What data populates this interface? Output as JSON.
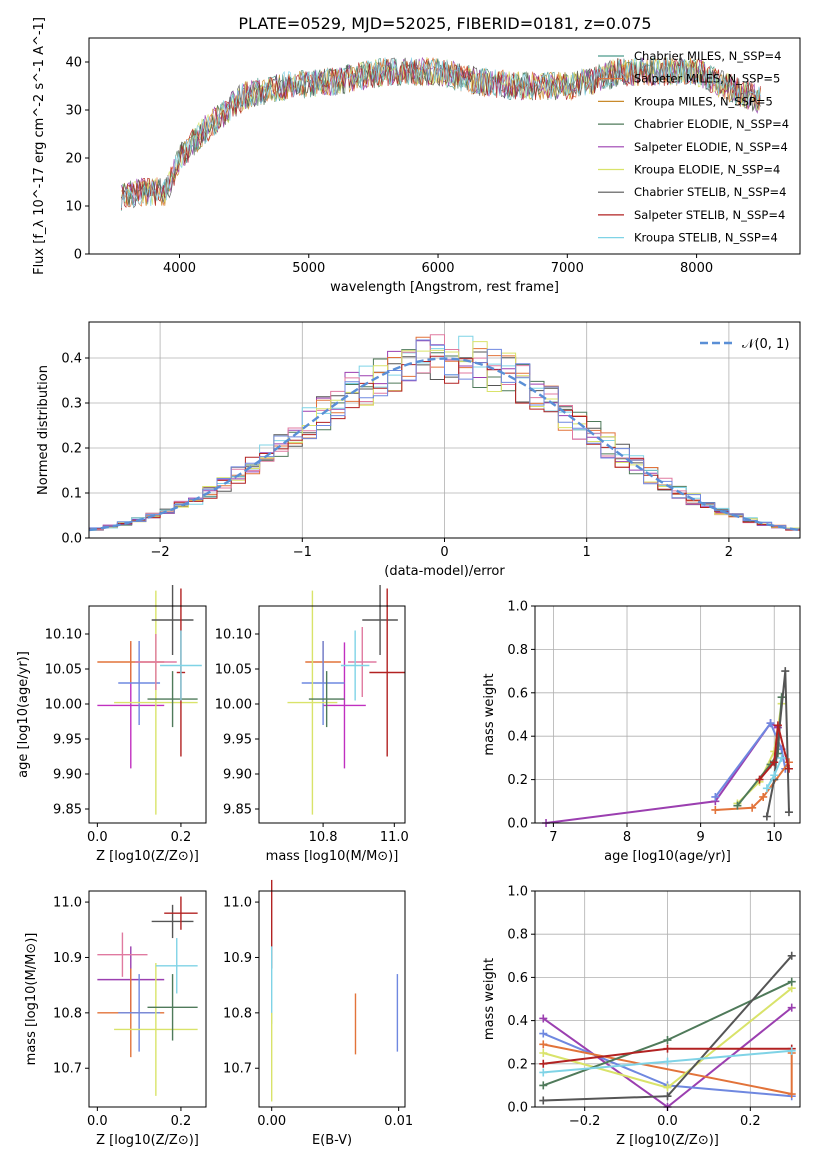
{
  "figure_title": "PLATE=0529, MJD=52025, FIBERID=0181, z=0.075",
  "chart_data": [
    {
      "id": "spectrum",
      "type": "line",
      "xlabel": "wavelength [Angstrom, rest frame]",
      "ylabel": "Flux [f_λ 10^-17 erg cm^-2 s^-1 A^-1]",
      "xlim": [
        3300,
        8800
      ],
      "ylim": [
        0,
        45
      ],
      "xticks": [
        4000,
        5000,
        6000,
        7000,
        8000
      ],
      "yticks": [
        0,
        10,
        20,
        30,
        40
      ],
      "legend_position": "top-right",
      "series": [
        {
          "name": "Chabrier MILES, N_SSP=4",
          "color": "#4c9a8c"
        },
        {
          "name": "Salpeter MILES, N_SSP=5",
          "color": "#e2733a"
        },
        {
          "name": "Kroupa MILES, N_SSP=5",
          "color": "#c98a2b"
        },
        {
          "name": "Chabrier ELODIE, N_SSP=4",
          "color": "#4f7a5a"
        },
        {
          "name": "Salpeter ELODIE, N_SSP=4",
          "color": "#9b3fb0"
        },
        {
          "name": "Kroupa ELODIE, N_SSP=4",
          "color": "#d9e36a"
        },
        {
          "name": "Chabrier STELIB, N_SSP=4",
          "color": "#555555"
        },
        {
          "name": "Salpeter STELIB, N_SSP=4",
          "color": "#b22222"
        },
        {
          "name": "Kroupa STELIB, N_SSP=4",
          "color": "#7fd3e6"
        }
      ],
      "continuum": {
        "x": [
          3550,
          3700,
          3900,
          4000,
          4200,
          4500,
          4800,
          5200,
          5600,
          6000,
          6300,
          6600,
          7000,
          7200,
          7400,
          7600,
          8000,
          8300,
          8500
        ],
        "y": [
          12,
          13,
          13,
          20,
          26,
          33,
          35,
          36,
          38,
          38,
          36,
          35,
          35,
          36,
          38,
          38,
          38,
          34,
          32
        ]
      }
    },
    {
      "id": "residuals",
      "type": "histogram",
      "xlabel": "(data-model)/error",
      "ylabel": "Normed distribution",
      "xlim": [
        -2.5,
        2.5
      ],
      "ylim": [
        0,
        0.48
      ],
      "xticks": [
        -2,
        -1,
        0,
        1,
        2
      ],
      "yticks": [
        0.0,
        0.1,
        0.2,
        0.3,
        0.4
      ],
      "legend_label": "𝒩(0, 1)",
      "legend_position": "top-right",
      "curve_color": "#5a8fd6",
      "grid": true
    },
    {
      "id": "age-vs-Z",
      "type": "errorbar",
      "xlabel": "Z [log10(Z/Z⊙)]",
      "ylabel": "age  [log10(age/yr)]",
      "xlim": [
        -0.02,
        0.26
      ],
      "ylim": [
        9.83,
        10.14
      ],
      "xticks": [
        0.0,
        0.2
      ],
      "yticks": [
        9.85,
        9.9,
        9.95,
        10.0,
        10.05,
        10.1
      ],
      "points": [
        {
          "x": 0.08,
          "y": 9.998,
          "xerr": 0.08,
          "yerr": 0.09,
          "color": "#c030c0"
        },
        {
          "x": 0.08,
          "y": 10.06,
          "xerr": 0.08,
          "yerr": 0.03,
          "color": "#e2733a"
        },
        {
          "x": 0.1,
          "y": 10.03,
          "xerr": 0.05,
          "yerr": 0.06,
          "color": "#6f88e0"
        },
        {
          "x": 0.14,
          "y": 10.002,
          "xerr": 0.1,
          "yerr": 0.16,
          "color": "#d9e36a"
        },
        {
          "x": 0.14,
          "y": 10.06,
          "xerr": 0.05,
          "yerr": 0.04,
          "color": "#e07aa0"
        },
        {
          "x": 0.18,
          "y": 10.007,
          "xerr": 0.06,
          "yerr": 0.04,
          "color": "#4f7a5a"
        },
        {
          "x": 0.18,
          "y": 10.12,
          "xerr": 0.05,
          "yerr": 0.05,
          "color": "#555555"
        },
        {
          "x": 0.2,
          "y": 10.045,
          "xerr": 0.01,
          "yerr": 0.12,
          "color": "#b22222"
        },
        {
          "x": 0.2,
          "y": 10.055,
          "xerr": 0.05,
          "yerr": 0.05,
          "color": "#7fd3e6"
        }
      ]
    },
    {
      "id": "age-vs-mass",
      "type": "errorbar",
      "xlabel": "mass [log10(M/M⊙)]",
      "ylabel": "",
      "xlim": [
        10.62,
        11.03
      ],
      "ylim": [
        9.83,
        10.14
      ],
      "xticks": [
        10.8,
        11.0
      ],
      "yticks": [
        9.85,
        9.9,
        9.95,
        10.0,
        10.05,
        10.1
      ],
      "points": [
        {
          "x": 10.86,
          "y": 9.998,
          "xerr": 0.06,
          "yerr": 0.09,
          "color": "#c030c0"
        },
        {
          "x": 10.8,
          "y": 10.06,
          "xerr": 0.05,
          "yerr": 0.03,
          "color": "#e2733a"
        },
        {
          "x": 10.8,
          "y": 10.03,
          "xerr": 0.06,
          "yerr": 0.06,
          "color": "#6f88e0"
        },
        {
          "x": 10.77,
          "y": 10.002,
          "xerr": 0.07,
          "yerr": 0.16,
          "color": "#d9e36a"
        },
        {
          "x": 10.91,
          "y": 10.06,
          "xerr": 0.04,
          "yerr": 0.05,
          "color": "#e07aa0"
        },
        {
          "x": 10.81,
          "y": 10.007,
          "xerr": 0.05,
          "yerr": 0.04,
          "color": "#4f7a5a"
        },
        {
          "x": 10.96,
          "y": 10.12,
          "xerr": 0.05,
          "yerr": 0.05,
          "color": "#555555"
        },
        {
          "x": 10.98,
          "y": 10.045,
          "xerr": 0.05,
          "yerr": 0.12,
          "color": "#b22222"
        },
        {
          "x": 10.89,
          "y": 10.055,
          "xerr": 0.04,
          "yerr": 0.05,
          "color": "#7fd3e6"
        }
      ]
    },
    {
      "id": "weight-vs-age",
      "type": "line",
      "xlabel": "age  [log10(age/yr)]",
      "ylabel": "mass weight",
      "xlim": [
        6.75,
        10.35
      ],
      "ylim": [
        0,
        1
      ],
      "xticks": [
        7,
        8,
        9,
        10
      ],
      "yticks": [
        0.0,
        0.2,
        0.4,
        0.6,
        0.8,
        1.0
      ],
      "grid": true,
      "series": [
        {
          "color": "#9b3fb0",
          "x": [
            6.9,
            9.2,
            9.95,
            10.05
          ],
          "y": [
            0.0,
            0.1,
            0.46,
            0.44
          ]
        },
        {
          "color": "#6f88e0",
          "x": [
            9.2,
            9.95,
            10.1,
            10.15
          ],
          "y": [
            0.12,
            0.46,
            0.34,
            0.25
          ]
        },
        {
          "color": "#e2733a",
          "x": [
            9.2,
            9.7,
            9.85,
            10.2
          ],
          "y": [
            0.06,
            0.07,
            0.12,
            0.28
          ]
        },
        {
          "color": "#d9e36a",
          "x": [
            9.5,
            9.8,
            10.0,
            10.1
          ],
          "y": [
            0.09,
            0.19,
            0.33,
            0.55
          ]
        },
        {
          "color": "#4f7a5a",
          "x": [
            9.5,
            9.95,
            10.05,
            10.1
          ],
          "y": [
            0.08,
            0.27,
            0.32,
            0.58
          ]
        },
        {
          "color": "#555555",
          "x": [
            9.9,
            10.0,
            10.15,
            10.2
          ],
          "y": [
            0.03,
            0.2,
            0.7,
            0.05
          ]
        },
        {
          "color": "#b22222",
          "x": [
            9.8,
            10.0,
            10.05,
            10.2
          ],
          "y": [
            0.2,
            0.28,
            0.45,
            0.25
          ]
        },
        {
          "color": "#7fd3e6",
          "x": [
            9.9,
            10.0,
            10.1
          ],
          "y": [
            0.16,
            0.22,
            0.3
          ]
        }
      ]
    },
    {
      "id": "mass-vs-Z",
      "type": "errorbar",
      "xlabel": "Z [log10(Z/Z⊙)]",
      "ylabel": "mass [log10(M/M⊙)]",
      "xlim": [
        -0.02,
        0.26
      ],
      "ylim": [
        10.63,
        11.02
      ],
      "xticks": [
        0.0,
        0.2
      ],
      "yticks": [
        10.7,
        10.8,
        10.9,
        11.0
      ],
      "points": [
        {
          "x": 0.08,
          "y": 10.86,
          "xerr": 0.08,
          "yerr": 0.06,
          "color": "#9b3fb0"
        },
        {
          "x": 0.08,
          "y": 10.8,
          "xerr": 0.08,
          "yerr": 0.08,
          "color": "#e2733a"
        },
        {
          "x": 0.1,
          "y": 10.8,
          "xerr": 0.05,
          "yerr": 0.07,
          "color": "#6f88e0"
        },
        {
          "x": 0.14,
          "y": 10.77,
          "xerr": 0.1,
          "yerr": 0.12,
          "color": "#d9e36a"
        },
        {
          "x": 0.06,
          "y": 10.905,
          "xerr": 0.06,
          "yerr": 0.04,
          "color": "#e07aa0"
        },
        {
          "x": 0.18,
          "y": 10.81,
          "xerr": 0.06,
          "yerr": 0.06,
          "color": "#4f7a5a"
        },
        {
          "x": 0.18,
          "y": 10.965,
          "xerr": 0.05,
          "yerr": 0.03,
          "color": "#555555"
        },
        {
          "x": 0.2,
          "y": 10.98,
          "xerr": 0.04,
          "yerr": 0.03,
          "color": "#b22222"
        },
        {
          "x": 0.19,
          "y": 10.885,
          "xerr": 0.05,
          "yerr": 0.05,
          "color": "#7fd3e6"
        }
      ]
    },
    {
      "id": "mass-vs-EBV",
      "type": "errorbar",
      "xlabel": "E(B-V)",
      "ylabel": "",
      "xlim": [
        -0.001,
        0.0105
      ],
      "ylim": [
        10.63,
        11.02
      ],
      "xticks": [
        0.0,
        0.01
      ],
      "yticks": [
        10.7,
        10.8,
        10.9,
        11.0
      ],
      "points": [
        {
          "x": 0.0,
          "y": 10.96,
          "xerr": 0,
          "yerr": 0.08,
          "color": "#b22222"
        },
        {
          "x": 0.0,
          "y": 10.85,
          "xerr": 0,
          "yerr": 0.07,
          "color": "#7fd3e6"
        },
        {
          "x": 0.0,
          "y": 10.72,
          "xerr": 0,
          "yerr": 0.08,
          "color": "#d9e36a"
        },
        {
          "x": 0.0066,
          "y": 10.78,
          "xerr": 0,
          "yerr": 0.055,
          "color": "#e2733a"
        },
        {
          "x": 0.0099,
          "y": 10.8,
          "xerr": 0,
          "yerr": 0.07,
          "color": "#6f88e0"
        }
      ]
    },
    {
      "id": "weight-vs-Z",
      "type": "line",
      "xlabel": "Z [log10(Z/Z⊙)]",
      "ylabel": "mass weight",
      "xlim": [
        -0.32,
        0.32
      ],
      "ylim": [
        0,
        1
      ],
      "xticks": [
        -0.2,
        0.0,
        0.2
      ],
      "yticks": [
        0.0,
        0.2,
        0.4,
        0.6,
        0.8,
        1.0
      ],
      "grid": true,
      "series": [
        {
          "color": "#9b3fb0",
          "x": [
            -0.3,
            0.0,
            0.3
          ],
          "y": [
            0.41,
            0.0,
            0.46
          ]
        },
        {
          "color": "#6f88e0",
          "x": [
            -0.3,
            0.0,
            0.3
          ],
          "y": [
            0.34,
            0.1,
            0.05
          ]
        },
        {
          "color": "#e2733a",
          "x": [
            -0.3,
            0.3,
            0.3
          ],
          "y": [
            0.29,
            0.06,
            0.25
          ]
        },
        {
          "color": "#d9e36a",
          "x": [
            -0.3,
            0.0,
            0.3
          ],
          "y": [
            0.25,
            0.09,
            0.55
          ]
        },
        {
          "color": "#4f7a5a",
          "x": [
            -0.3,
            0.0,
            0.3
          ],
          "y": [
            0.1,
            0.31,
            0.58
          ]
        },
        {
          "color": "#555555",
          "x": [
            -0.3,
            0.0,
            0.3
          ],
          "y": [
            0.03,
            0.05,
            0.7
          ]
        },
        {
          "color": "#b22222",
          "x": [
            -0.3,
            0.0,
            0.3
          ],
          "y": [
            0.2,
            0.27,
            0.27
          ]
        },
        {
          "color": "#7fd3e6",
          "x": [
            -0.3,
            0.0,
            0.3
          ],
          "y": [
            0.16,
            0.21,
            0.26
          ]
        }
      ]
    }
  ]
}
